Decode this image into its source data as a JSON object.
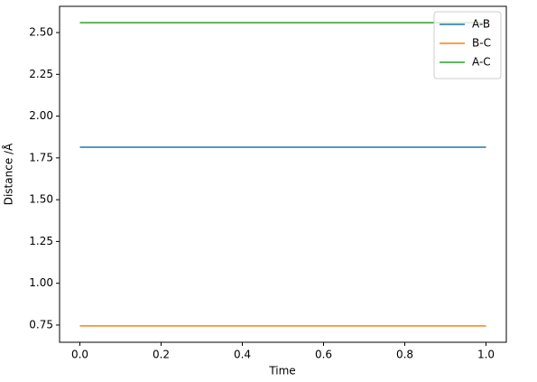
{
  "chart_data": {
    "type": "line",
    "x_label": "Time",
    "y_label": "Distance /Å",
    "series": [
      {
        "name": "A-B",
        "color": "#1f77b4",
        "x": [
          0,
          1
        ],
        "values": [
          1.814,
          1.814
        ]
      },
      {
        "name": "B-C",
        "color": "#ff7f0e",
        "x": [
          0,
          1
        ],
        "values": [
          0.745,
          0.745
        ]
      },
      {
        "name": "A-C",
        "color": "#2ca02c",
        "x": [
          0,
          1
        ],
        "values": [
          2.559,
          2.559
        ]
      }
    ],
    "xlim": [
      -0.05,
      1.05
    ],
    "ylim": [
      0.647,
      2.657
    ],
    "xticks": [
      {
        "value": 0,
        "label": "0.0"
      },
      {
        "value": 0.2,
        "label": "0.2"
      },
      {
        "value": 0.4,
        "label": "0.4"
      },
      {
        "value": 0.6,
        "label": "0.6"
      },
      {
        "value": 0.8,
        "label": "0.8"
      },
      {
        "value": 1,
        "label": "1.0"
      }
    ],
    "yticks": [
      0.75,
      {
        "value": 1,
        "label": "1.00"
      },
      1.25,
      {
        "value": 1.5,
        "label": "1.50"
      },
      1.75,
      {
        "value": 2,
        "label": "2.00"
      },
      2.25,
      {
        "value": 2.5,
        "label": "2.50"
      }
    ],
    "legend": "upper right"
  }
}
